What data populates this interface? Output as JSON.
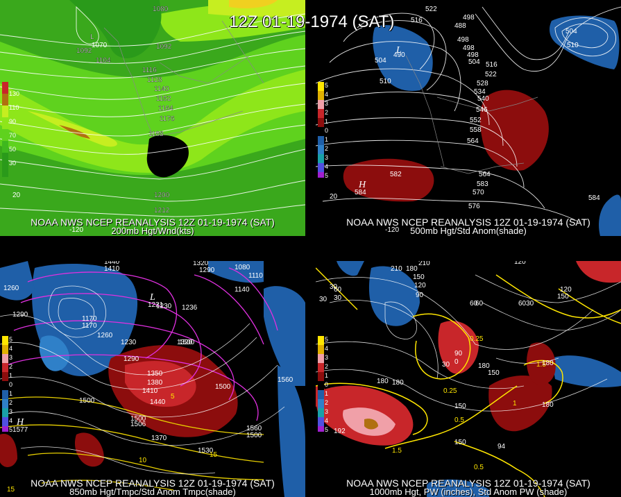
{
  "main_title": "12Z 01-19-1974 (SAT)",
  "panels": {
    "tl": {
      "caption1": "NOAA NWS NCEP REANALYSIS 12Z 01-19-1974 (SAT)",
      "caption2": "200mb Hgt/Wnd(kts)",
      "legend": [
        "130",
        "110",
        "90",
        "70",
        "50",
        "30"
      ],
      "contours": [
        "1080",
        "1092",
        "1104",
        "1116",
        "1128",
        "1140",
        "1152",
        "1164",
        "1176",
        "1188",
        "1200",
        "1212",
        "1092"
      ],
      "lon_labels": [
        "-120",
        "20"
      ],
      "low_label": "L",
      "low_value": "1070"
    },
    "tr": {
      "caption1": "NOAA NWS NCEP REANALYSIS 12Z 01-19-1974 (SAT)",
      "caption2": "500mb Hgt/Std Anom(shade)",
      "legend": [
        "5",
        "4",
        "3",
        "2",
        "1",
        "0",
        "1",
        "2",
        "3",
        "4",
        "5"
      ],
      "contours": [
        "516",
        "522",
        "498",
        "504",
        "510",
        "516",
        "522",
        "528",
        "534",
        "540",
        "546",
        "552",
        "558",
        "564",
        "582",
        "564",
        "570",
        "576",
        "504",
        "510",
        "498",
        "498",
        "488",
        "498",
        "504"
      ],
      "lon_labels": [
        "-120",
        "20"
      ],
      "high_label": "H",
      "high_value": "584",
      "low_label": "L",
      "low_value": "490",
      "high2_value": "583",
      "high3_value": "584"
    },
    "bl": {
      "caption1": "NOAA NWS NCEP REANALYSIS 12Z 01-19-1974 (SAT)",
      "caption2": "850mb Hgt/Tmpc/Std Anom Tmpc(shade)",
      "legend": [
        "5",
        "4",
        "3",
        "2",
        "1",
        "0",
        "1",
        "2",
        "3",
        "4",
        "5"
      ],
      "contours": [
        "1440",
        "1410",
        "1260",
        "1290",
        "1170",
        "1170",
        "1260",
        "1230",
        "1230",
        "1290",
        "1350",
        "1380",
        "1410",
        "1440",
        "1500",
        "1500",
        "1500",
        "1320",
        "1290",
        "1320",
        "1080",
        "1110",
        "1140",
        "1500",
        "1560",
        "1370",
        "1530",
        "1560",
        "1500",
        "10",
        "15",
        "5",
        "15"
      ],
      "high_label": "H",
      "high_value": "1577",
      "high2_value": "1506",
      "low_label": "L",
      "low_value": "1221",
      "low2_value": "1236"
    },
    "br": {
      "caption1": "NOAA NWS NCEP REANALYSIS 12Z 01-19-1974 (SAT)",
      "caption2": "1000mb Hgt, PW (inches), Std Anom PW (shade)",
      "legend": [
        "5",
        "4",
        "3",
        "2",
        "1",
        "0",
        "1",
        "2",
        "3",
        "4",
        "5"
      ],
      "contours": [
        "210",
        "180",
        "150",
        "120",
        "90",
        "60",
        "30",
        "180",
        "210",
        "120",
        "6030",
        "120",
        "150",
        "150",
        "60",
        "30",
        "90",
        "0",
        "30",
        "0.25",
        "0.25",
        "180",
        "150",
        "1.5",
        "0.5",
        "180",
        "150",
        "1.5",
        "0.5",
        "1",
        "60",
        "30",
        "180",
        "180"
      ],
      "high_value": "192",
      "low_value": "94"
    }
  },
  "colors": {
    "wind_greens": [
      "#2a9a1a",
      "#3fb81e",
      "#5fd21e",
      "#8ee61a",
      "#c6ee20"
    ],
    "wind_strong": "#b07010",
    "anom_red_dark": "#8c0d0d",
    "anom_red": "#c8262a",
    "anom_pink": "#f0a0a8",
    "anom_blue": "#1f5fa8",
    "anom_blue_light": "#2f80c8",
    "temp_magenta": "#e030e0",
    "temp_yellow": "#e8d000",
    "pw_yellow": "#ffe600"
  }
}
